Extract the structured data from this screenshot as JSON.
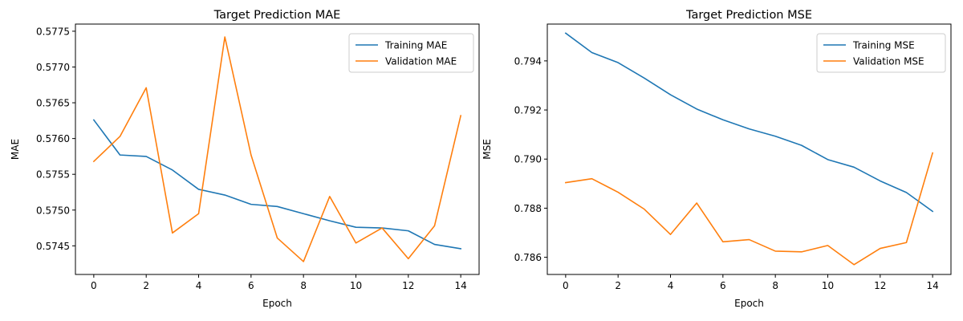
{
  "chart_data": [
    {
      "type": "line",
      "title": "Target Prediction MAE",
      "xlabel": "Epoch",
      "ylabel": "MAE",
      "x": [
        0,
        1,
        2,
        3,
        4,
        5,
        6,
        7,
        8,
        9,
        10,
        11,
        12,
        13,
        14
      ],
      "xlim": [
        -0.7,
        14.7
      ],
      "ylim": [
        0.5741,
        0.5776
      ],
      "xticks": [
        0,
        2,
        4,
        6,
        8,
        10,
        12,
        14
      ],
      "xtick_labels": [
        "0",
        "2",
        "4",
        "6",
        "8",
        "10",
        "12",
        "14"
      ],
      "yticks": [
        0.5745,
        0.575,
        0.5755,
        0.576,
        0.5765,
        0.577,
        0.5775
      ],
      "ytick_labels": [
        "0.5745",
        "0.5750",
        "0.5755",
        "0.5760",
        "0.5765",
        "0.5770",
        "0.5775"
      ],
      "grid": false,
      "legend_position": "top-right",
      "series": [
        {
          "name": "Training MAE",
          "color": "#1f77b4",
          "values": [
            0.57626,
            0.57577,
            0.57575,
            0.57556,
            0.57529,
            0.57521,
            0.57508,
            0.57505,
            0.57495,
            0.57485,
            0.57476,
            0.57475,
            0.57471,
            0.57452,
            0.57446
          ]
        },
        {
          "name": "Validation MAE",
          "color": "#ff7f0e",
          "values": [
            0.57568,
            0.57603,
            0.57671,
            0.57468,
            0.57495,
            0.57742,
            0.57577,
            0.57461,
            0.57428,
            0.57519,
            0.57454,
            0.57475,
            0.57432,
            0.57478,
            0.57632
          ]
        }
      ]
    },
    {
      "type": "line",
      "title": "Target Prediction MSE",
      "xlabel": "Epoch",
      "ylabel": "MSE",
      "x": [
        0,
        1,
        2,
        3,
        4,
        5,
        6,
        7,
        8,
        9,
        10,
        11,
        12,
        13,
        14
      ],
      "xlim": [
        -0.7,
        14.7
      ],
      "ylim": [
        0.7853,
        0.7955
      ],
      "xticks": [
        0,
        2,
        4,
        6,
        8,
        10,
        12,
        14
      ],
      "xtick_labels": [
        "0",
        "2",
        "4",
        "6",
        "8",
        "10",
        "12",
        "14"
      ],
      "yticks": [
        0.786,
        0.788,
        0.79,
        0.792,
        0.794
      ],
      "ytick_labels": [
        "0.786",
        "0.788",
        "0.790",
        "0.792",
        "0.794"
      ],
      "grid": false,
      "legend_position": "top-right",
      "series": [
        {
          "name": "Training MSE",
          "color": "#1f77b4",
          "values": [
            0.79513,
            0.79434,
            0.79393,
            0.7933,
            0.79262,
            0.79204,
            0.7916,
            0.79123,
            0.79093,
            0.79056,
            0.78998,
            0.78967,
            0.78911,
            0.78864,
            0.78787
          ]
        },
        {
          "name": "Validation MSE",
          "color": "#ff7f0e",
          "values": [
            0.78904,
            0.7892,
            0.78865,
            0.78796,
            0.78693,
            0.78821,
            0.78663,
            0.78672,
            0.78625,
            0.78622,
            0.78648,
            0.7857,
            0.78636,
            0.7866,
            0.79025
          ]
        }
      ]
    }
  ]
}
